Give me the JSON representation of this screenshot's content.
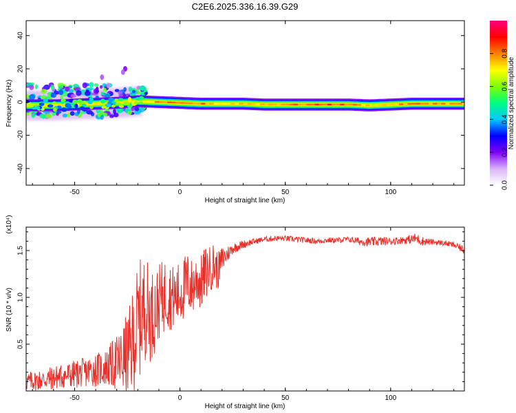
{
  "figure": {
    "title": "C2E6.2025.336.16.39.G29"
  },
  "chart_data": [
    {
      "type": "heatmap",
      "title": "C2E6.2025.336.16.39.G29",
      "xlabel": "Height of straight line (km)",
      "ylabel": "Frequency (Hz)",
      "xlim": [
        -73,
        135
      ],
      "ylim": [
        -50,
        49
      ],
      "x_ticks": [
        -50,
        0,
        50,
        100
      ],
      "y_ticks": [
        -40,
        -20,
        0,
        20,
        40
      ],
      "grid": false,
      "colorbar": {
        "label": "Normalized spectral amplitude",
        "range": [
          0,
          1
        ],
        "ticks": [
          "0.0",
          "0.2",
          "0.4",
          "0.6",
          "0.8"
        ],
        "colormap": [
          "#ffffff",
          "#d8b4f8",
          "#8000ff",
          "#0000ff",
          "#00c8ff",
          "#00ff80",
          "#80ff00",
          "#ffff00",
          "#ff8000",
          "#ff0000",
          "#ff0080"
        ]
      },
      "ridge": {
        "x": [
          -73,
          -60,
          -50,
          -40,
          -30,
          -20,
          -10,
          0,
          10,
          20,
          30,
          40,
          50,
          60,
          70,
          80,
          90,
          100,
          110,
          120,
          135
        ],
        "frequency": [
          -2,
          -2,
          -1.5,
          -1,
          -0.5,
          0.5,
          0,
          -0.5,
          -1,
          -1,
          -1,
          -1.5,
          -1.5,
          -1.5,
          -1.5,
          -1.5,
          -2,
          -1.5,
          -1,
          -1,
          -1
        ],
        "amplitude": [
          0.3,
          0.35,
          0.35,
          0.4,
          0.45,
          0.6,
          0.8,
          0.75,
          0.8,
          0.7,
          0.75,
          0.75,
          0.8,
          0.8,
          0.85,
          0.8,
          0.7,
          0.75,
          0.8,
          0.8,
          0.75
        ]
      }
    },
    {
      "type": "line",
      "xlabel": "Height of straight line (km)",
      "ylabel": "SNR (10 * v/v)",
      "y_multiplier": "(x10⁴)",
      "xlim": [
        -73,
        135
      ],
      "ylim": [
        0.0,
        1.75
      ],
      "x_ticks": [
        -50,
        0,
        50,
        100
      ],
      "y_ticks": [
        "0.5",
        "1.0",
        "1.5"
      ],
      "grid": false,
      "series": [
        {
          "color": "#e8302a",
          "x": [
            -73,
            -65,
            -55,
            -45,
            -35,
            -28,
            -24,
            -22,
            -20,
            -18,
            -16,
            -14,
            -12,
            -10,
            -8,
            -6,
            -4,
            -2,
            0,
            2,
            4,
            6,
            8,
            10,
            12,
            14,
            16,
            18,
            20,
            22,
            25,
            28,
            32,
            36,
            40,
            45,
            50,
            55,
            60,
            65,
            70,
            75,
            80,
            85,
            90,
            95,
            100,
            105,
            110,
            112,
            115,
            120,
            125,
            130,
            133,
            135
          ],
          "y": [
            0.1,
            0.12,
            0.16,
            0.2,
            0.25,
            0.32,
            0.4,
            0.55,
            0.7,
            0.85,
            0.9,
            0.8,
            0.85,
            0.95,
            1.0,
            1.05,
            1.0,
            1.0,
            1.05,
            1.1,
            1.15,
            1.1,
            1.2,
            1.15,
            1.25,
            1.3,
            1.35,
            1.28,
            1.4,
            1.45,
            1.52,
            1.55,
            1.58,
            1.6,
            1.62,
            1.63,
            1.63,
            1.62,
            1.61,
            1.6,
            1.61,
            1.61,
            1.62,
            1.6,
            1.59,
            1.6,
            1.6,
            1.61,
            1.62,
            1.63,
            1.6,
            1.59,
            1.58,
            1.56,
            1.53,
            1.5
          ],
          "amplitude_spread": [
            0.1,
            0.12,
            0.14,
            0.16,
            0.2,
            0.35,
            0.5,
            0.6,
            0.65,
            0.6,
            0.55,
            0.5,
            0.45,
            0.4,
            0.4,
            0.4,
            0.35,
            0.35,
            0.35,
            0.35,
            0.35,
            0.3,
            0.3,
            0.3,
            0.3,
            0.25,
            0.25,
            0.2,
            0.15,
            0.1,
            0.06,
            0.05,
            0.04,
            0.03,
            0.03,
            0.03,
            0.03,
            0.03,
            0.03,
            0.03,
            0.03,
            0.03,
            0.03,
            0.04,
            0.05,
            0.05,
            0.04,
            0.04,
            0.05,
            0.06,
            0.05,
            0.03,
            0.03,
            0.03,
            0.04,
            0.04
          ]
        }
      ]
    }
  ]
}
